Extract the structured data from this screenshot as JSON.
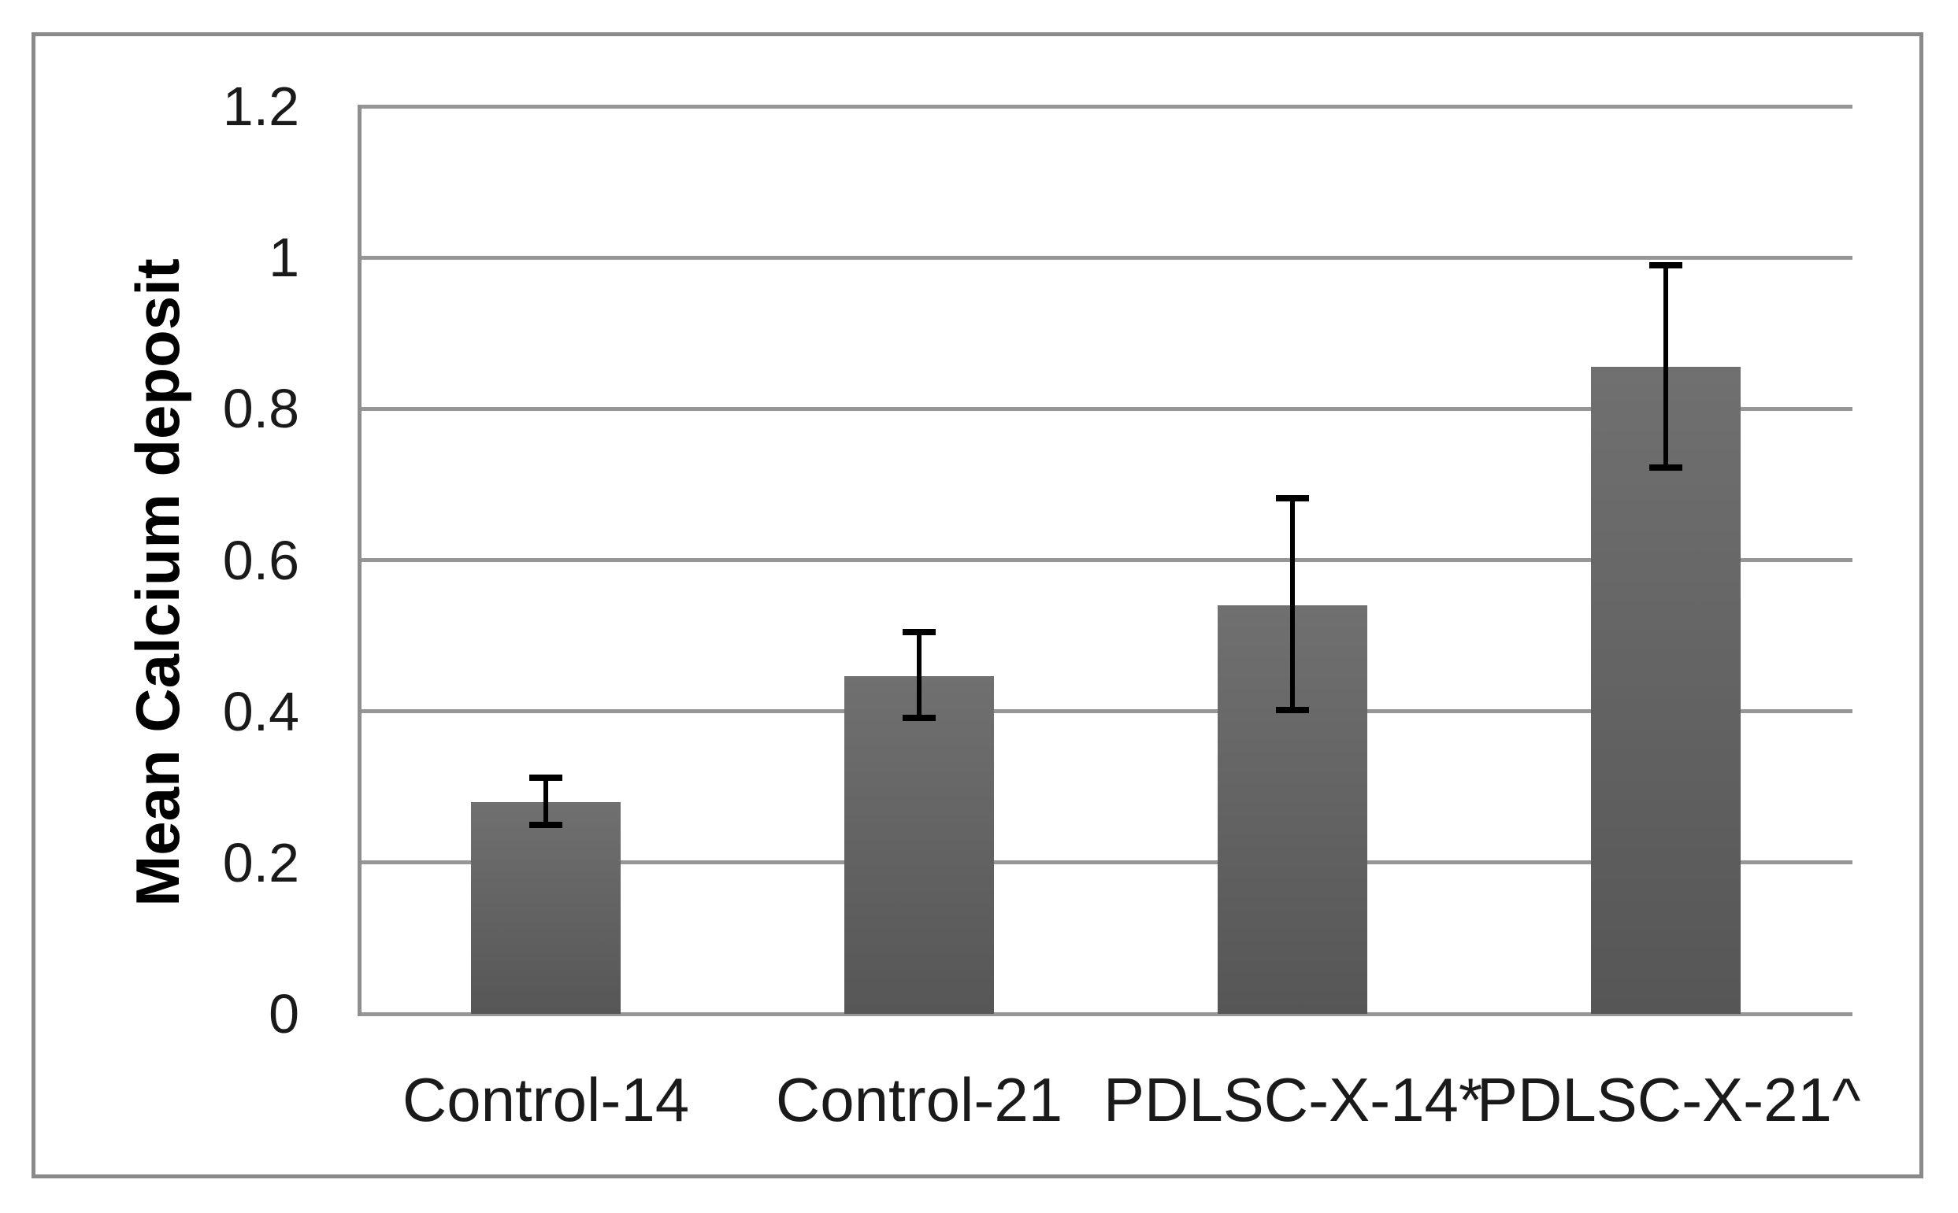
{
  "chart_data": {
    "type": "bar",
    "title": "",
    "xlabel": "",
    "ylabel": "Mean Calcium deposit",
    "categories": [
      "Control-14",
      "Control-21",
      "PDLSC-X-14*",
      "PDLSC-X-21^"
    ],
    "values": [
      0.28,
      0.447,
      0.54,
      0.855
    ],
    "errors_up": [
      0.032,
      0.058,
      0.142,
      0.135
    ],
    "errors_down": [
      0.03,
      0.056,
      0.138,
      0.133
    ],
    "ylim": [
      0,
      1.2
    ],
    "yticks": [
      0,
      0.2,
      0.4,
      0.6,
      0.8,
      1,
      1.2
    ],
    "ytick_labels": [
      "0",
      "0.2",
      "0.4",
      "0.6",
      "0.8",
      "1",
      "1.2"
    ],
    "grid": true,
    "legend": false,
    "colors": {
      "bar_gradient_top": "#707070",
      "bar_gradient_bottom": "#565656",
      "gridline": "#969696",
      "axis": "#8f8f8f",
      "error_bar": "#000000",
      "frame_border": "#8a8a8a",
      "background": "#ffffff",
      "text": "#1a1a1a"
    }
  }
}
